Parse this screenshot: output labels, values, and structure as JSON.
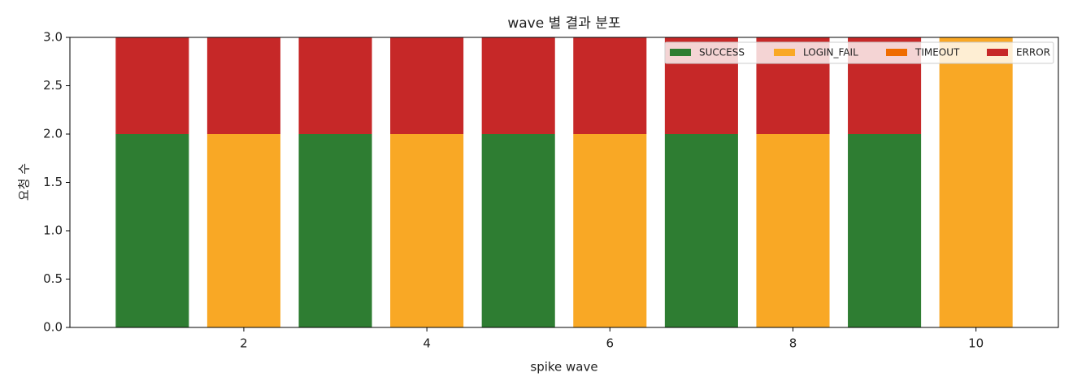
{
  "chart_data": {
    "type": "stacked_bar",
    "title": "wave 별 결과 분포",
    "xlabel": "spike wave",
    "ylabel": "요청 수",
    "x": [
      1,
      2,
      3,
      4,
      5,
      6,
      7,
      8,
      9,
      10
    ],
    "series": [
      {
        "name": "SUCCESS",
        "color": "#2e7d32",
        "values": [
          2,
          0,
          2,
          0,
          2,
          0,
          2,
          0,
          2,
          0
        ]
      },
      {
        "name": "LOGIN_FAIL",
        "color": "#f9a825",
        "values": [
          0,
          2,
          0,
          2,
          0,
          2,
          0,
          2,
          0,
          3
        ]
      },
      {
        "name": "TIMEOUT",
        "color": "#ef6c00",
        "values": [
          0,
          0,
          0,
          0,
          0,
          0,
          0,
          0,
          0,
          0
        ]
      },
      {
        "name": "ERROR",
        "color": "#c62828",
        "values": [
          1,
          1,
          1,
          1,
          1,
          1,
          1,
          1,
          1,
          0
        ]
      }
    ],
    "bar_width": 0.8,
    "xlim": [
      0.1,
      10.9
    ],
    "xticks": [
      2,
      4,
      6,
      8,
      10
    ],
    "ylim": [
      0,
      3
    ],
    "yticks": [
      {
        "value": 0,
        "label": "0.0"
      },
      0.5,
      {
        "value": 1,
        "label": "1.0"
      },
      1.5,
      {
        "value": 2,
        "label": "2.0"
      },
      2.5,
      {
        "value": 3,
        "label": "3.0"
      }
    ],
    "grid": false,
    "legend": "upper right",
    "legend_columns": 4
  }
}
